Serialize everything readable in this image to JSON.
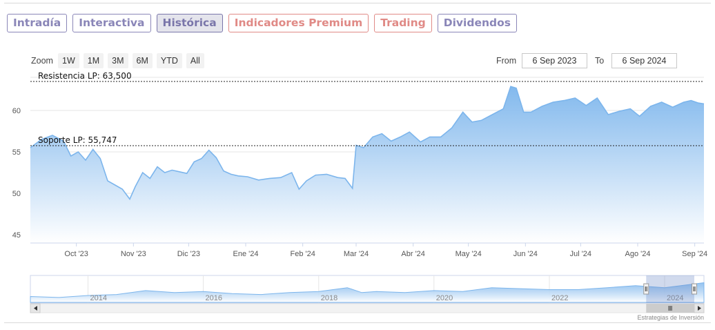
{
  "tabs": [
    {
      "label": "Intradía",
      "style": "purple"
    },
    {
      "label": "Interactiva",
      "style": "purple"
    },
    {
      "label": "Histórica",
      "style": "active"
    },
    {
      "label": "Indicadores Premium",
      "style": "red"
    },
    {
      "label": "Trading",
      "style": "red"
    },
    {
      "label": "Dividendos",
      "style": "purple"
    }
  ],
  "toolbar": {
    "zoom_label": "Zoom",
    "zoom_buttons": [
      "1W",
      "1M",
      "3M",
      "6M",
      "YTD",
      "All"
    ],
    "from_label": "From",
    "from_value": "6 Sep 2023",
    "to_label": "To",
    "to_value": "6 Sep 2024"
  },
  "credit": "Estrategias de Inversión",
  "colors": {
    "line": "#7cb5ec",
    "area_top": "#7cb5ec",
    "area_bottom": "#ffffff",
    "plotline": "#222222"
  },
  "chart_data": {
    "type": "area",
    "x_range": [
      "2023-09-06",
      "2024-09-06"
    ],
    "ylim": [
      44,
      64
    ],
    "y_ticks": [
      45,
      50,
      55,
      60
    ],
    "x_ticks": [
      {
        "date": "2023-10-01",
        "label": "Oct '23"
      },
      {
        "date": "2023-11-01",
        "label": "Nov '23"
      },
      {
        "date": "2023-12-01",
        "label": "Dic '23"
      },
      {
        "date": "2024-01-01",
        "label": "Ene '24"
      },
      {
        "date": "2024-02-01",
        "label": "Feb '24"
      },
      {
        "date": "2024-03-01",
        "label": "Mar '24"
      },
      {
        "date": "2024-04-01",
        "label": "Abr '24"
      },
      {
        "date": "2024-05-01",
        "label": "May '24"
      },
      {
        "date": "2024-06-01",
        "label": "Jun '24"
      },
      {
        "date": "2024-07-01",
        "label": "Jul '24"
      },
      {
        "date": "2024-08-01",
        "label": "Ago '24"
      },
      {
        "date": "2024-09-01",
        "label": "Sep '24"
      }
    ],
    "plot_lines": [
      {
        "label": "Resistencia LP: 63,500",
        "value": 63.5
      },
      {
        "label": "Soporte LP: 55,747",
        "value": 55.747
      }
    ],
    "series": [
      {
        "x": [
          "2023-09-06",
          "2023-09-12",
          "2023-09-18",
          "2023-09-24",
          "2023-09-28",
          "2023-10-02",
          "2023-10-06",
          "2023-10-10",
          "2023-10-14",
          "2023-10-18",
          "2023-10-22",
          "2023-10-26",
          "2023-10-30",
          "2023-11-02",
          "2023-11-06",
          "2023-11-10",
          "2023-11-14",
          "2023-11-18",
          "2023-11-22",
          "2023-11-26",
          "2023-11-30",
          "2023-12-04",
          "2023-12-08",
          "2023-12-12",
          "2023-12-16",
          "2023-12-20",
          "2023-12-24",
          "2023-12-28",
          "2024-01-02",
          "2024-01-08",
          "2024-01-14",
          "2024-01-20",
          "2024-01-26",
          "2024-01-30",
          "2024-02-03",
          "2024-02-08",
          "2024-02-14",
          "2024-02-20",
          "2024-02-24",
          "2024-02-28",
          "2024-03-01",
          "2024-03-05",
          "2024-03-10",
          "2024-03-15",
          "2024-03-20",
          "2024-03-25",
          "2024-03-30",
          "2024-04-05",
          "2024-04-10",
          "2024-04-16",
          "2024-04-22",
          "2024-04-28",
          "2024-05-03",
          "2024-05-08",
          "2024-05-14",
          "2024-05-20",
          "2024-05-24",
          "2024-05-27",
          "2024-05-31",
          "2024-06-04",
          "2024-06-10",
          "2024-06-16",
          "2024-06-22",
          "2024-06-28",
          "2024-07-04",
          "2024-07-10",
          "2024-07-16",
          "2024-07-22",
          "2024-07-28",
          "2024-08-02",
          "2024-08-08",
          "2024-08-14",
          "2024-08-20",
          "2024-08-26",
          "2024-08-30",
          "2024-09-03",
          "2024-09-06"
        ],
        "y": [
          55.5,
          56.5,
          57.0,
          56.3,
          54.5,
          55.0,
          54.0,
          55.3,
          54.2,
          51.5,
          51.0,
          50.5,
          49.3,
          50.8,
          52.5,
          51.8,
          53.2,
          52.5,
          52.8,
          52.6,
          52.4,
          53.8,
          54.2,
          55.2,
          54.3,
          52.7,
          52.3,
          52.1,
          52.0,
          51.6,
          51.8,
          51.9,
          52.5,
          50.5,
          51.5,
          52.2,
          52.3,
          51.9,
          51.8,
          50.6,
          55.8,
          55.5,
          56.8,
          57.2,
          56.3,
          56.8,
          57.4,
          56.2,
          56.8,
          56.8,
          57.9,
          59.8,
          58.6,
          58.8,
          59.5,
          60.2,
          62.9,
          62.7,
          59.8,
          59.8,
          60.5,
          61.0,
          61.2,
          61.5,
          60.6,
          61.5,
          59.5,
          59.9,
          60.2,
          59.3,
          60.5,
          61.0,
          60.4,
          61.0,
          61.2,
          60.9,
          60.8
        ]
      }
    ]
  },
  "navigator": {
    "x_range": [
      "2013-01-01",
      "2024-09-06"
    ],
    "x_ticks": [
      {
        "date": "2014-01-01",
        "label": "2014"
      },
      {
        "date": "2016-01-01",
        "label": "2016"
      },
      {
        "date": "2018-01-01",
        "label": "2018"
      },
      {
        "date": "2020-01-01",
        "label": "2020"
      },
      {
        "date": "2022-01-01",
        "label": "2022"
      },
      {
        "date": "2024-01-01",
        "label": "2024"
      }
    ],
    "selection": [
      "2023-09-06",
      "2024-09-06"
    ],
    "series": [
      {
        "x": [
          "2013-01-01",
          "2013-07-01",
          "2014-01-01",
          "2014-07-01",
          "2015-01-01",
          "2015-07-01",
          "2016-01-01",
          "2016-07-01",
          "2017-01-01",
          "2017-07-01",
          "2018-01-01",
          "2018-07-01",
          "2018-10-01",
          "2019-01-01",
          "2019-07-01",
          "2020-01-01",
          "2020-07-01",
          "2021-01-01",
          "2021-07-01",
          "2022-01-01",
          "2022-07-01",
          "2023-01-01",
          "2023-07-01",
          "2024-01-01",
          "2024-09-06"
        ],
        "y": [
          46,
          45,
          47,
          48,
          52,
          50,
          51,
          49,
          48,
          50,
          51,
          55,
          50,
          51,
          50,
          52,
          51,
          55,
          54,
          53,
          53,
          55,
          57,
          55,
          60
        ]
      }
    ]
  }
}
